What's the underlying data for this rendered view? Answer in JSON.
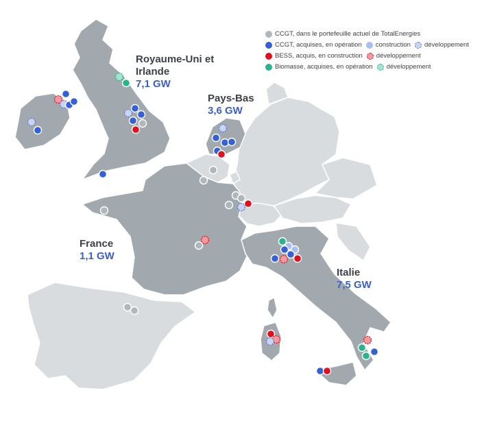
{
  "regions": {
    "uk": {
      "name_line1": "Royaume-Uni et",
      "name_line2": "Irlande",
      "capacity": "7,1 GW"
    },
    "nl": {
      "name": "Pays-Bas",
      "capacity": "3,6 GW"
    },
    "fr": {
      "name": "France",
      "capacity": "1,1 GW"
    },
    "it": {
      "name": "Italie",
      "capacity": "7,5 GW"
    }
  },
  "legend": {
    "row1": {
      "label": "CCGT, dans le portefeuille actuel de TotalEnergies"
    },
    "row2": {
      "label": "CCGT, acquises, en opération",
      "label2": "construction",
      "label3": "développement"
    },
    "row3": {
      "label": "BESS, acquis, en construction",
      "label2": "développement"
    },
    "row4": {
      "label": "Biomasse, acquises, en opération",
      "label2": "développement"
    }
  },
  "colors": {
    "ccgt_current": "#b1b6ba",
    "ccgt_operation": "#3560d8",
    "ccgt_construction": "#a9bdf0",
    "ccgt_development": "#c9d4f2",
    "bess_construction": "#e0101e",
    "bess_development": "#f29aa0",
    "biomass_operation": "#2bb38e",
    "biomass_development": "#a6e3cf",
    "focus_land": "#a2a9ae",
    "other_land": "#d9dcdf",
    "capacity_text": "#3b5fc4"
  }
}
